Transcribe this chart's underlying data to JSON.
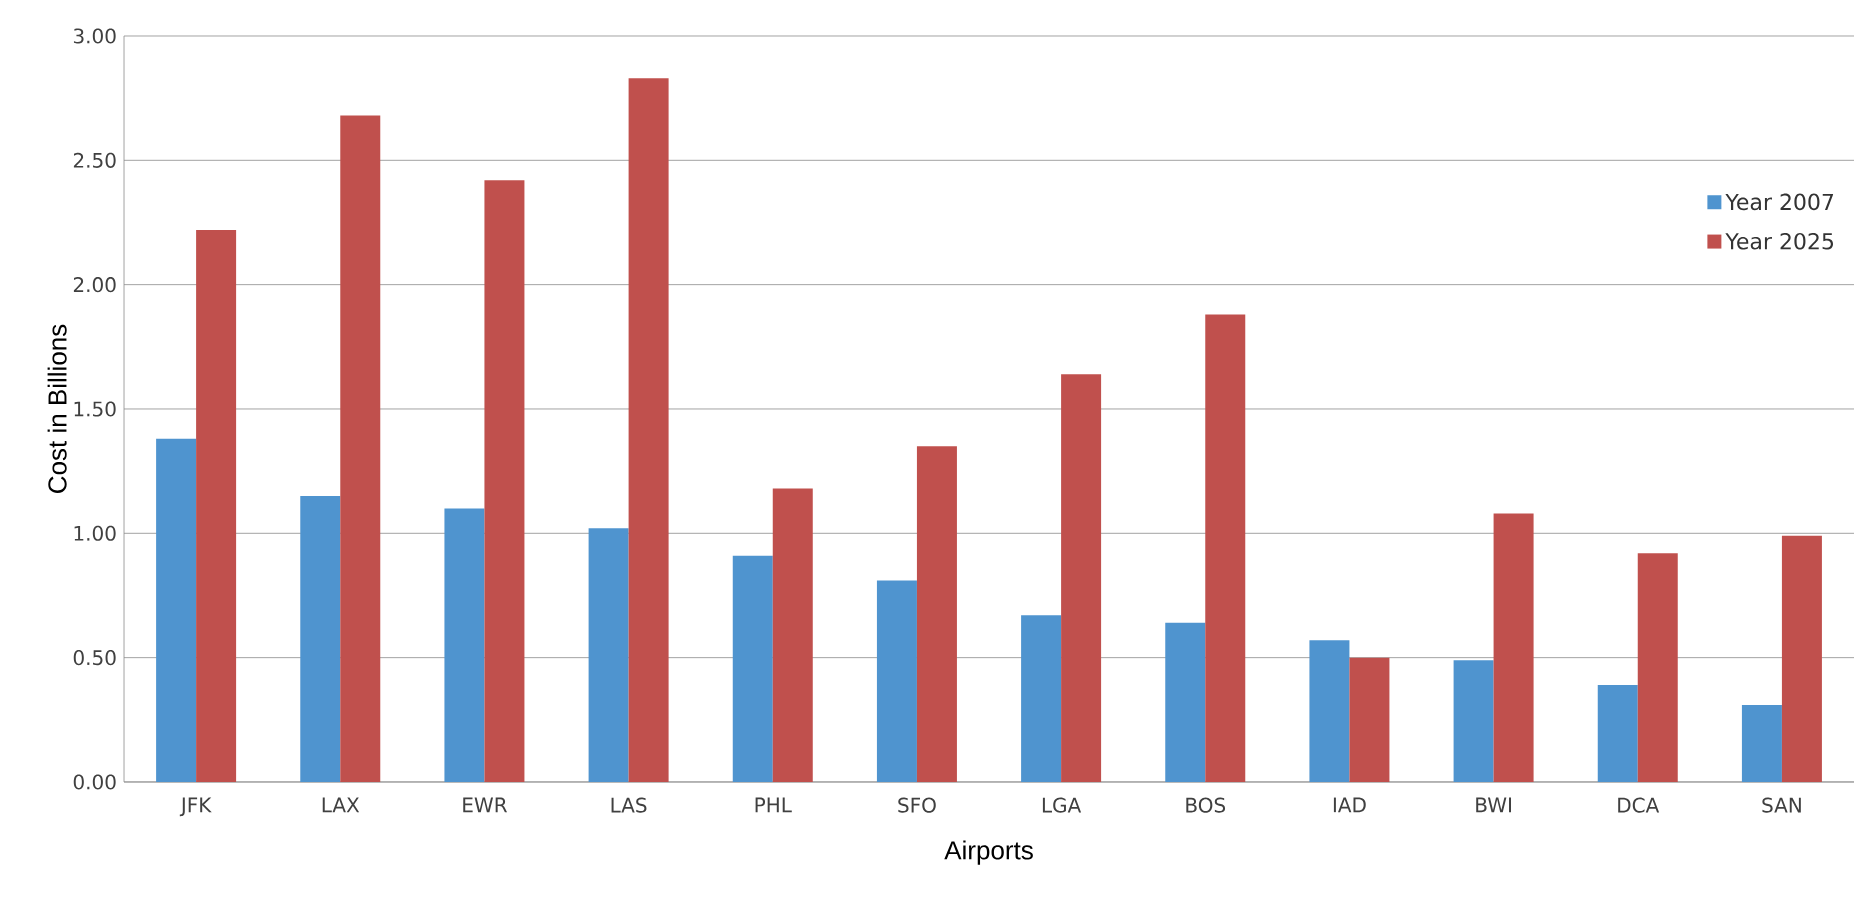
{
  "chart_data": {
    "type": "bar",
    "xlabel": "Airports",
    "ylabel": "Cost in Billions",
    "categories": [
      "JFK",
      "LAX",
      "EWR",
      "LAS",
      "PHL",
      "SFO",
      "LGA",
      "BOS",
      "IAD",
      "BWI",
      "DCA",
      "SAN"
    ],
    "series": [
      {
        "name": "Year 2007",
        "color": "#4f94cf",
        "values": [
          1.38,
          1.15,
          1.1,
          1.02,
          0.91,
          0.81,
          0.67,
          0.64,
          0.57,
          0.49,
          0.39,
          0.31
        ]
      },
      {
        "name": "Year 2025",
        "color": "#c0504d",
        "values": [
          2.22,
          2.68,
          2.42,
          2.83,
          1.18,
          1.35,
          1.64,
          1.88,
          0.5,
          1.08,
          0.92,
          0.99
        ]
      }
    ],
    "ylim": [
      0,
      3
    ],
    "yticks": [
      {
        "value": 0,
        "label": "0.00"
      },
      {
        "value": 0.5,
        "label": "0.50"
      },
      {
        "value": 1,
        "label": "1.00"
      },
      {
        "value": 1.5,
        "label": "1.50"
      },
      {
        "value": 2,
        "label": "2.00"
      },
      {
        "value": 2.5,
        "label": "2.50"
      },
      {
        "value": 3,
        "label": "3.00"
      }
    ],
    "grid": "y",
    "legend": "top right"
  }
}
